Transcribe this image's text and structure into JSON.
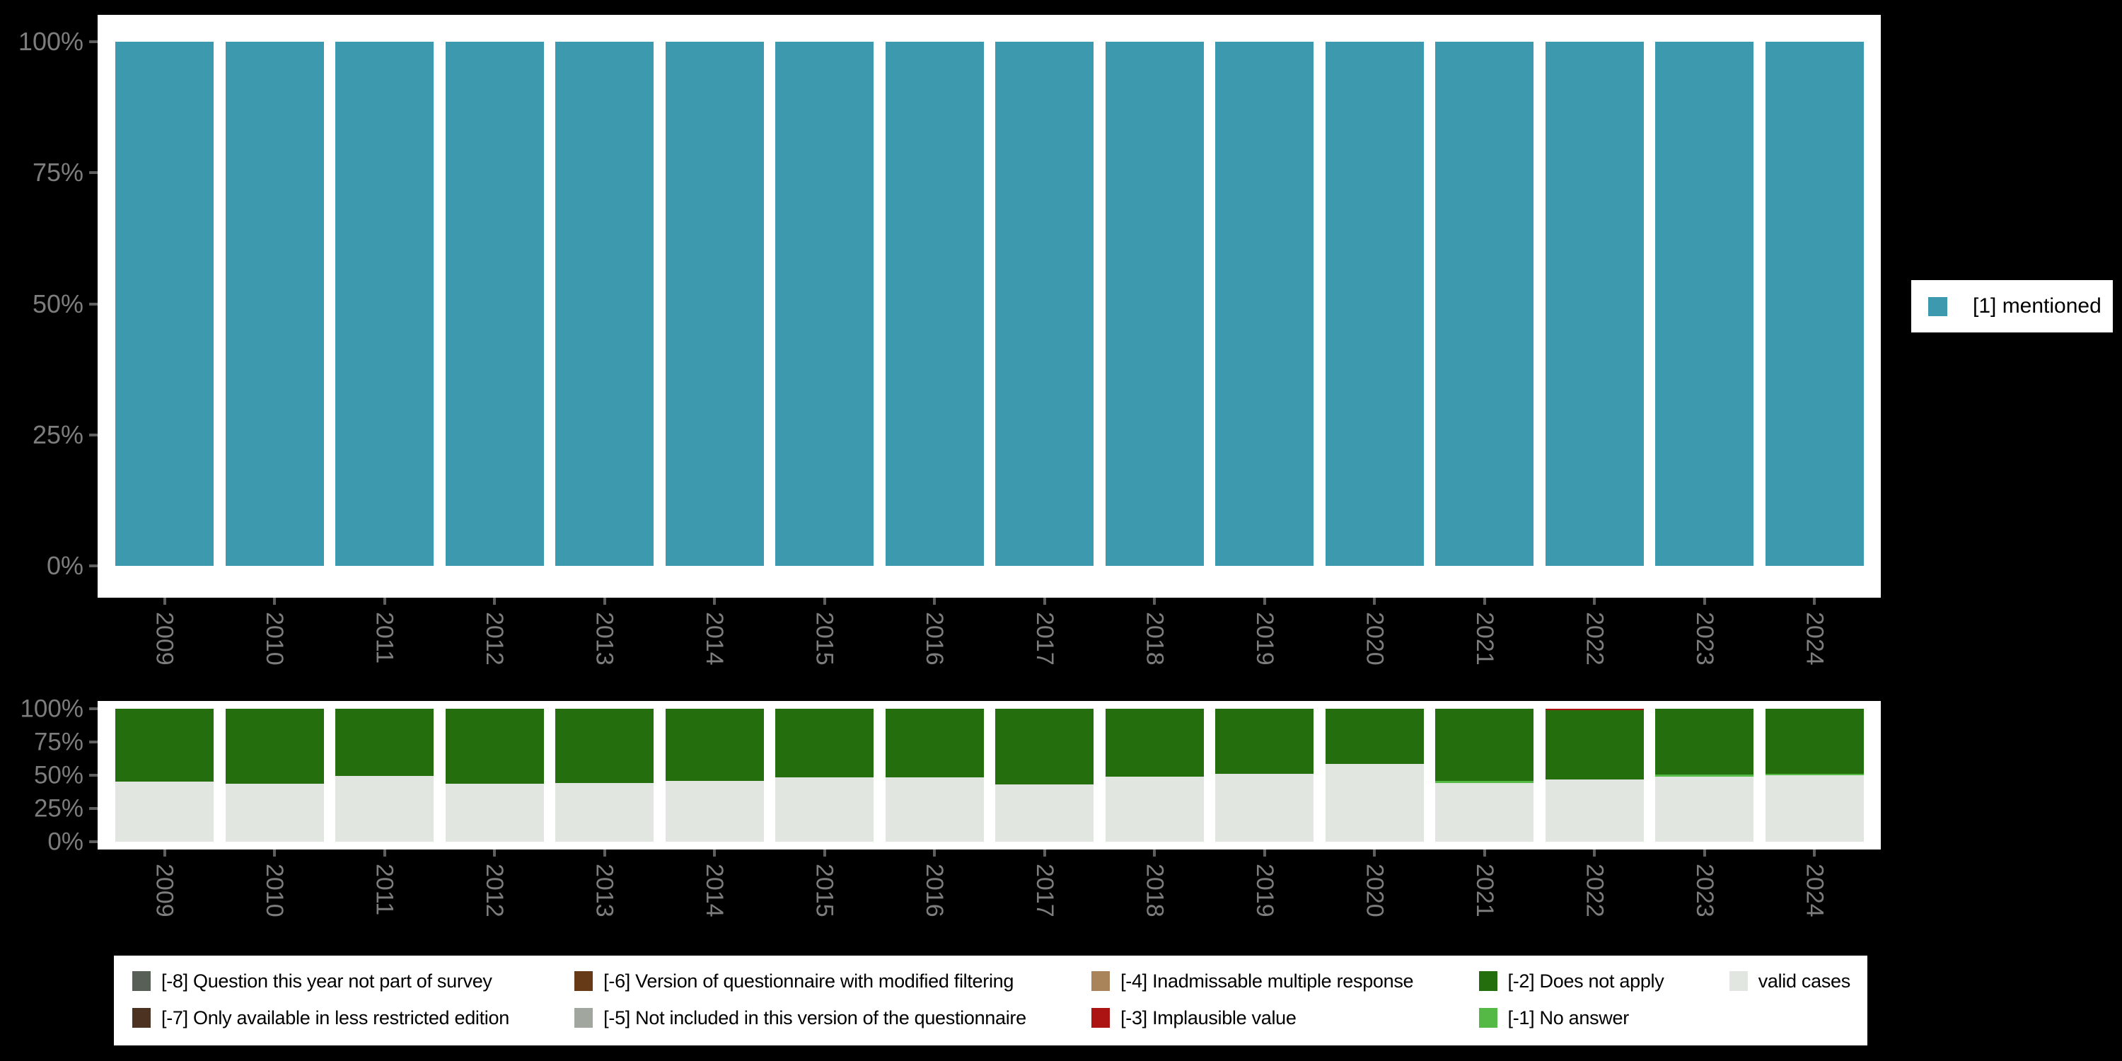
{
  "colors": {
    "background": "#000000",
    "panel": "#ffffff",
    "axis_text": "#7d7d7d",
    "tick_mark": "#5f5f5f",
    "mentioned": "#3d9aae",
    "valid_cases": "#e2e6e0",
    "no_answer": "#55b945",
    "does_not_apply": "#256e0e",
    "implausible_value": "#ab1412",
    "not_part_of_survey": "#575f56",
    "less_restricted_edition": "#4b3221",
    "modified_filtering": "#663917",
    "not_in_questionnaire": "#a1a79e",
    "inadmissable_multiple": "#a9835a"
  },
  "legend_right": {
    "label": "[1] mentioned",
    "color": "#3d9aae"
  },
  "chart_data": [
    {
      "type": "bar",
      "stacked": true,
      "title": "",
      "xlabel": "",
      "ylabel": "",
      "ylim": [
        0,
        100
      ],
      "grid": false,
      "legend_position": "right",
      "yticks": [
        "0%",
        "25%",
        "50%",
        "75%",
        "100%"
      ],
      "x": [
        "2009",
        "2010",
        "2011",
        "2012",
        "2013",
        "2014",
        "2015",
        "2016",
        "2017",
        "2018",
        "2019",
        "2020",
        "2021",
        "2022",
        "2023",
        "2024"
      ],
      "series": [
        {
          "name": "[1] mentioned",
          "color": "#3d9aae",
          "values": [
            100,
            100,
            100,
            100,
            100,
            100,
            100,
            100,
            100,
            100,
            100,
            100,
            100,
            100,
            100,
            100
          ]
        }
      ]
    },
    {
      "type": "bar",
      "stacked": true,
      "title": "",
      "xlabel": "",
      "ylabel": "",
      "ylim": [
        0,
        100
      ],
      "grid": false,
      "legend_position": "bottom",
      "yticks": [
        "0%",
        "25%",
        "50%",
        "75%",
        "100%"
      ],
      "x": [
        "2009",
        "2010",
        "2011",
        "2012",
        "2013",
        "2014",
        "2015",
        "2016",
        "2017",
        "2018",
        "2019",
        "2020",
        "2021",
        "2022",
        "2023",
        "2024"
      ],
      "series": [
        {
          "name": "valid cases",
          "color": "#e2e6e0",
          "values": [
            45,
            43.5,
            49.5,
            43.5,
            44,
            46,
            48.5,
            48.5,
            43,
            49,
            51,
            58.5,
            44,
            47,
            49,
            50
          ]
        },
        {
          "name": "[-1] No answer",
          "color": "#55b945",
          "values": [
            0,
            0,
            0,
            0,
            0,
            0,
            0,
            0,
            0,
            0,
            0,
            0,
            1.5,
            0,
            1.5,
            1
          ]
        },
        {
          "name": "[-2] Does not apply",
          "color": "#256e0e",
          "values": [
            55,
            56.5,
            50.5,
            56.5,
            56,
            54,
            51.5,
            51.5,
            57,
            51,
            49,
            41.5,
            54.5,
            52,
            49.5,
            49
          ]
        },
        {
          "name": "[-3] Implausible value",
          "color": "#ab1412",
          "values": [
            0,
            0,
            0,
            0,
            0,
            0,
            0,
            0,
            0,
            0,
            0,
            0,
            0,
            1,
            0,
            0
          ]
        }
      ]
    }
  ],
  "legend_bottom": {
    "columns": [
      [
        {
          "label": "[-8] Question this year not part of survey",
          "color": "#575f56"
        },
        {
          "label": "[-7] Only available in less restricted edition",
          "color": "#4b3221"
        }
      ],
      [
        {
          "label": "[-6] Version of questionnaire with modified filtering",
          "color": "#663917"
        },
        {
          "label": "[-5] Not included in this version of the questionnaire",
          "color": "#a1a79e"
        }
      ],
      [
        {
          "label": "[-4] Inadmissable multiple response",
          "color": "#a9835a"
        },
        {
          "label": "[-3] Implausible value",
          "color": "#ab1412"
        }
      ],
      [
        {
          "label": "[-2] Does not apply",
          "color": "#256e0e"
        },
        {
          "label": "[-1] No answer",
          "color": "#55b945"
        }
      ],
      [
        {
          "label": "valid cases",
          "color": "#e2e6e0"
        }
      ]
    ]
  }
}
